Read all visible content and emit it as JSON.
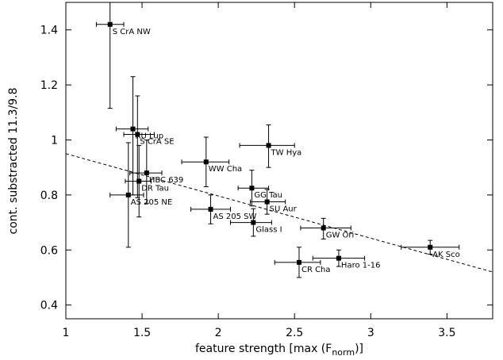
{
  "chart_data": {
    "type": "scatter",
    "title": "",
    "xlabel": "feature strength [max (F",
    "xlabel_sub": "norm",
    "xlabel_end": ")]",
    "ylabel": "cont. substracted 11.3/9.8",
    "xlim": [
      1,
      3.8
    ],
    "ylim": [
      0.35,
      1.5
    ],
    "xticks": [
      1,
      1.5,
      2,
      2.5,
      3,
      3.5
    ],
    "xtick_labels": [
      "1",
      "1.5",
      "2",
      "2.5",
      "3",
      "3.5"
    ],
    "yticks": [
      0.4,
      0.6,
      0.8,
      1.0,
      1.2,
      1.4
    ],
    "ytick_labels": [
      "0.4",
      "0.6",
      "0.8",
      "1",
      "1.2",
      "1.4"
    ],
    "grid": false,
    "fit_line": {
      "style": "dashed",
      "x": [
        1,
        3.8
      ],
      "y": [
        0.95,
        0.52
      ]
    },
    "points": [
      {
        "name": "S CrA NW",
        "x": 1.29,
        "y": 1.42,
        "xerr": [
          1.2,
          1.38
        ],
        "yerr": [
          1.115,
          1.5
        ]
      },
      {
        "name": "RU Lup",
        "x": 1.44,
        "y": 1.04,
        "xerr": [
          1.33,
          1.54
        ],
        "yerr": [
          0.8,
          1.23
        ]
      },
      {
        "name": "S CrA SE",
        "x": 1.47,
        "y": 1.02,
        "xerr": [
          1.38,
          1.58
        ],
        "yerr": [
          0.79,
          1.16
        ]
      },
      {
        "name": "HBC 639",
        "x": 1.53,
        "y": 0.88,
        "xerr": [
          1.42,
          1.63
        ],
        "yerr": [
          0.77,
          1.0
        ]
      },
      {
        "name": "DR Tau",
        "x": 1.48,
        "y": 0.85,
        "xerr": [
          1.39,
          1.56
        ],
        "yerr": [
          0.72,
          0.98
        ]
      },
      {
        "name": "AS 205 NE",
        "x": 1.41,
        "y": 0.8,
        "xerr": [
          1.29,
          1.51
        ],
        "yerr": [
          0.61,
          0.99
        ]
      },
      {
        "name": "WW Cha",
        "x": 1.92,
        "y": 0.92,
        "xerr": [
          1.76,
          2.07
        ],
        "yerr": [
          0.83,
          1.01
        ]
      },
      {
        "name": "TW Hya",
        "x": 2.33,
        "y": 0.98,
        "xerr": [
          2.14,
          2.5
        ],
        "yerr": [
          0.9,
          1.055
        ]
      },
      {
        "name": "GG Tau",
        "x": 2.22,
        "y": 0.825,
        "xerr": [
          2.13,
          2.33
        ],
        "yerr": [
          0.76,
          0.89
        ]
      },
      {
        "name": "SU Aur",
        "x": 2.32,
        "y": 0.775,
        "xerr": [
          2.21,
          2.44
        ],
        "yerr": [
          0.73,
          0.82
        ]
      },
      {
        "name": "AS 205 SW",
        "x": 1.95,
        "y": 0.748,
        "xerr": [
          1.82,
          2.08
        ],
        "yerr": [
          0.695,
          0.8
        ]
      },
      {
        "name": "Glass I",
        "x": 2.23,
        "y": 0.7,
        "xerr": [
          2.08,
          2.35
        ],
        "yerr": [
          0.65,
          0.75
        ]
      },
      {
        "name": "GW Ori",
        "x": 2.69,
        "y": 0.68,
        "xerr": [
          2.54,
          2.87
        ],
        "yerr": [
          0.64,
          0.715
        ]
      },
      {
        "name": "AK Sco",
        "x": 3.39,
        "y": 0.61,
        "xerr": [
          3.2,
          3.58
        ],
        "yerr": [
          0.585,
          0.635
        ]
      },
      {
        "name": "CR Cha",
        "x": 2.53,
        "y": 0.555,
        "xerr": [
          2.37,
          2.67
        ],
        "yerr": [
          0.5,
          0.61
        ]
      },
      {
        "name": "Haro 1-16",
        "x": 2.79,
        "y": 0.57,
        "xerr": [
          2.62,
          2.96
        ],
        "yerr": [
          0.54,
          0.6
        ]
      }
    ]
  }
}
